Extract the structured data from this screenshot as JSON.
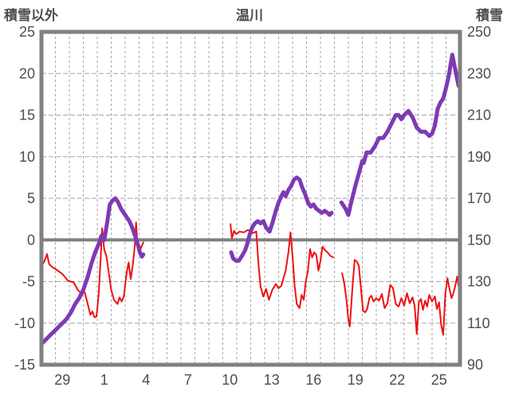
{
  "header": {
    "left_axis_title": "積雪以外",
    "chart_title": "温川",
    "right_axis_title": "積雪"
  },
  "chart_data": {
    "type": "line",
    "title": "温川",
    "left_axis": {
      "title": "積雪以外",
      "min": -15,
      "max": 25,
      "tick_step": 5,
      "ticks": [
        25,
        20,
        15,
        10,
        5,
        0,
        -5,
        -10,
        -15
      ]
    },
    "right_axis": {
      "title": "積雪",
      "min": 90,
      "max": 250,
      "tick_step": 20,
      "ticks": [
        250,
        230,
        210,
        190,
        170,
        150,
        130,
        110,
        90
      ]
    },
    "x_axis": {
      "tick_labels": [
        "29",
        "1",
        "4",
        "7",
        "10",
        "13",
        "16",
        "19",
        "22",
        "25"
      ],
      "tick_center_days": [
        1.5,
        4.5,
        7.5,
        10.5,
        13.5,
        16.5,
        19.5,
        22.5,
        25.5,
        28.5
      ],
      "total_days": 30,
      "gridline_step_days": 1
    },
    "grid": {
      "color": "#a6a6a6",
      "frame_color": "#808080",
      "zero_line_color": "#808080",
      "text_color": "#4d4d4d"
    },
    "series": [
      {
        "name": "non-snow-red-line",
        "axis": "left",
        "color": "#ee1111",
        "width": 2,
        "segments": [
          [
            [
              0,
              -3.2
            ],
            [
              0.2,
              -2.6
            ],
            [
              0.4,
              -1.7
            ],
            [
              0.55,
              -2.9
            ],
            [
              0.8,
              -3.3
            ],
            [
              1.1,
              -3.6
            ],
            [
              1.5,
              -4.1
            ],
            [
              1.9,
              -4.9
            ],
            [
              2.3,
              -5.1
            ],
            [
              2.6,
              -6.0
            ],
            [
              2.9,
              -6.5
            ],
            [
              3.1,
              -6.3
            ],
            [
              3.3,
              -7.6
            ],
            [
              3.5,
              -9.0
            ],
            [
              3.65,
              -8.6
            ],
            [
              3.8,
              -9.3
            ],
            [
              3.95,
              -9.2
            ],
            [
              4.1,
              -6.5
            ],
            [
              4.25,
              -2.0
            ],
            [
              4.35,
              1.4
            ],
            [
              4.5,
              -1.2
            ],
            [
              4.65,
              -1.9
            ],
            [
              4.8,
              -3.6
            ],
            [
              5.0,
              -6.0
            ],
            [
              5.2,
              -7.2
            ],
            [
              5.45,
              -7.7
            ],
            [
              5.6,
              -6.9
            ],
            [
              5.75,
              -7.4
            ],
            [
              5.9,
              -6.8
            ],
            [
              6.1,
              -4.0
            ],
            [
              6.25,
              -2.7
            ],
            [
              6.4,
              -4.7
            ],
            [
              6.55,
              -3.0
            ],
            [
              6.7,
              -0.5
            ],
            [
              6.78,
              2.1
            ],
            [
              6.9,
              -1.0
            ],
            [
              7.0,
              -0.6
            ],
            [
              7.1,
              -1.1
            ],
            [
              7.3,
              -0.3
            ]
          ],
          [
            [
              13.55,
              1.9
            ],
            [
              13.65,
              0.2
            ],
            [
              13.8,
              1.1
            ],
            [
              13.95,
              0.7
            ],
            [
              14.2,
              1.0
            ],
            [
              14.5,
              0.9
            ],
            [
              14.8,
              1.2
            ],
            [
              15.1,
              0.8
            ],
            [
              15.4,
              1.0
            ],
            [
              15.55,
              -2.7
            ],
            [
              15.7,
              -5.6
            ],
            [
              15.9,
              -6.8
            ],
            [
              16.1,
              -5.9
            ],
            [
              16.3,
              -7.2
            ],
            [
              16.55,
              -6.0
            ],
            [
              16.8,
              -5.3
            ],
            [
              17.0,
              -5.8
            ],
            [
              17.2,
              -5.5
            ],
            [
              17.5,
              -3.7
            ],
            [
              17.7,
              -1.5
            ],
            [
              17.85,
              0.9
            ],
            [
              18.0,
              -2.0
            ],
            [
              18.15,
              -5.5
            ],
            [
              18.3,
              -7.7
            ],
            [
              18.5,
              -8.2
            ],
            [
              18.65,
              -6.6
            ],
            [
              18.8,
              -7.2
            ],
            [
              18.95,
              -5.0
            ],
            [
              19.1,
              -3.7
            ],
            [
              19.25,
              -1.1
            ],
            [
              19.4,
              -2.1
            ],
            [
              19.55,
              -1.5
            ],
            [
              19.7,
              -1.8
            ],
            [
              19.85,
              -3.7
            ],
            [
              20.0,
              -2.5
            ],
            [
              20.15,
              -0.8
            ],
            [
              20.3,
              -1.2
            ],
            [
              20.5,
              -1.5
            ],
            [
              20.7,
              -1.9
            ],
            [
              20.9,
              -2.1
            ]
          ],
          [
            [
              21.55,
              -4.0
            ],
            [
              21.7,
              -5.2
            ],
            [
              21.85,
              -7.0
            ],
            [
              22.0,
              -9.6
            ],
            [
              22.1,
              -10.4
            ],
            [
              22.3,
              -5.5
            ],
            [
              22.45,
              -2.4
            ],
            [
              22.6,
              -2.6
            ],
            [
              22.75,
              -3.1
            ],
            [
              22.9,
              -5.8
            ],
            [
              23.05,
              -8.5
            ],
            [
              23.2,
              -8.7
            ],
            [
              23.35,
              -8.3
            ],
            [
              23.5,
              -7.0
            ],
            [
              23.65,
              -6.7
            ],
            [
              23.8,
              -7.4
            ],
            [
              24.0,
              -7.0
            ],
            [
              24.2,
              -7.3
            ],
            [
              24.4,
              -6.5
            ],
            [
              24.6,
              -8.2
            ],
            [
              24.8,
              -7.6
            ],
            [
              25.0,
              -5.4
            ],
            [
              25.2,
              -5.8
            ],
            [
              25.4,
              -7.7
            ],
            [
              25.6,
              -8.0
            ],
            [
              25.8,
              -7.0
            ],
            [
              26.0,
              -7.9
            ],
            [
              26.2,
              -6.4
            ],
            [
              26.4,
              -7.6
            ],
            [
              26.6,
              -6.9
            ],
            [
              26.75,
              -7.9
            ],
            [
              26.9,
              -11.3
            ],
            [
              27.05,
              -7.5
            ],
            [
              27.2,
              -7.1
            ],
            [
              27.35,
              -8.4
            ],
            [
              27.5,
              -7.3
            ],
            [
              27.65,
              -8.0
            ],
            [
              27.8,
              -6.6
            ],
            [
              28.0,
              -7.4
            ],
            [
              28.2,
              -6.8
            ],
            [
              28.35,
              -8.3
            ],
            [
              28.5,
              -7.5
            ],
            [
              28.65,
              -10.2
            ],
            [
              28.8,
              -11.4
            ],
            [
              28.95,
              -6.5
            ],
            [
              29.1,
              -4.6
            ],
            [
              29.25,
              -5.9
            ],
            [
              29.4,
              -7.0
            ],
            [
              29.55,
              -6.3
            ],
            [
              29.7,
              -5.2
            ],
            [
              29.8,
              -4.4
            ],
            [
              29.9,
              -5.6
            ]
          ]
        ]
      },
      {
        "name": "snow-depth-purple-line",
        "axis": "right",
        "color": "#7d3ab5",
        "width": 5,
        "segments": [
          [
            [
              0,
              100
            ],
            [
              0.3,
              102
            ],
            [
              0.6,
              104
            ],
            [
              0.9,
              106
            ],
            [
              1.2,
              108
            ],
            [
              1.5,
              110
            ],
            [
              1.8,
              112
            ],
            [
              2.1,
              115
            ],
            [
              2.4,
              119
            ],
            [
              2.7,
              122
            ],
            [
              3.0,
              126
            ],
            [
              3.3,
              132
            ],
            [
              3.6,
              139
            ],
            [
              3.85,
              144
            ],
            [
              4.1,
              148
            ],
            [
              4.3,
              152
            ],
            [
              4.5,
              150
            ],
            [
              4.7,
              158
            ],
            [
              4.9,
              167
            ],
            [
              5.1,
              169
            ],
            [
              5.3,
              170
            ],
            [
              5.5,
              168
            ],
            [
              5.7,
              165
            ],
            [
              5.9,
              163
            ],
            [
              6.1,
              161
            ],
            [
              6.3,
              159
            ],
            [
              6.5,
              156
            ],
            [
              6.7,
              152
            ],
            [
              6.9,
              148
            ],
            [
              7.05,
              144
            ],
            [
              7.2,
              142
            ],
            [
              7.3,
              143
            ]
          ],
          [
            [
              13.6,
              144
            ],
            [
              13.75,
              141
            ],
            [
              13.95,
              140
            ],
            [
              14.15,
              140
            ],
            [
              14.35,
              142
            ],
            [
              14.6,
              145
            ],
            [
              14.75,
              148
            ],
            [
              14.9,
              152
            ],
            [
              15.1,
              156
            ],
            [
              15.3,
              158
            ],
            [
              15.5,
              159
            ],
            [
              15.7,
              158
            ],
            [
              15.9,
              159
            ],
            [
              16.1,
              156
            ],
            [
              16.35,
              154
            ],
            [
              16.55,
              158
            ],
            [
              16.8,
              164
            ],
            [
              17.0,
              168
            ],
            [
              17.2,
              171
            ],
            [
              17.35,
              173
            ],
            [
              17.5,
              171
            ],
            [
              17.7,
              174
            ],
            [
              17.9,
              176
            ],
            [
              18.1,
              179
            ],
            [
              18.3,
              180
            ],
            [
              18.5,
              179
            ],
            [
              18.7,
              175
            ],
            [
              18.9,
              172
            ],
            [
              19.1,
              168
            ],
            [
              19.3,
              166
            ],
            [
              19.5,
              167
            ],
            [
              19.7,
              165
            ],
            [
              19.9,
              164
            ],
            [
              20.1,
              163
            ],
            [
              20.3,
              164
            ],
            [
              20.5,
              163
            ],
            [
              20.65,
              162
            ],
            [
              20.8,
              163
            ]
          ],
          [
            [
              21.5,
              168
            ],
            [
              21.8,
              165
            ],
            [
              22.0,
              162
            ],
            [
              22.2,
              168
            ],
            [
              22.5,
              176
            ],
            [
              22.8,
              183
            ],
            [
              23.0,
              188
            ],
            [
              23.1,
              187
            ],
            [
              23.3,
              192
            ],
            [
              23.6,
              192
            ],
            [
              23.9,
              195
            ],
            [
              24.2,
              199
            ],
            [
              24.5,
              199
            ],
            [
              24.8,
              202
            ],
            [
              25.1,
              206
            ],
            [
              25.4,
              210
            ],
            [
              25.6,
              210
            ],
            [
              25.8,
              208
            ],
            [
              26.0,
              210
            ],
            [
              26.3,
              212
            ],
            [
              26.6,
              209
            ],
            [
              26.9,
              204
            ],
            [
              27.2,
              202
            ],
            [
              27.5,
              202
            ],
            [
              27.8,
              200
            ],
            [
              28.0,
              201
            ],
            [
              28.2,
              205
            ],
            [
              28.4,
              213
            ],
            [
              28.6,
              216
            ],
            [
              28.8,
              218
            ],
            [
              29.0,
              223
            ],
            [
              29.2,
              229
            ],
            [
              29.35,
              235
            ],
            [
              29.45,
              239
            ],
            [
              29.6,
              234
            ],
            [
              29.75,
              229
            ],
            [
              29.9,
              224
            ]
          ]
        ]
      }
    ]
  }
}
